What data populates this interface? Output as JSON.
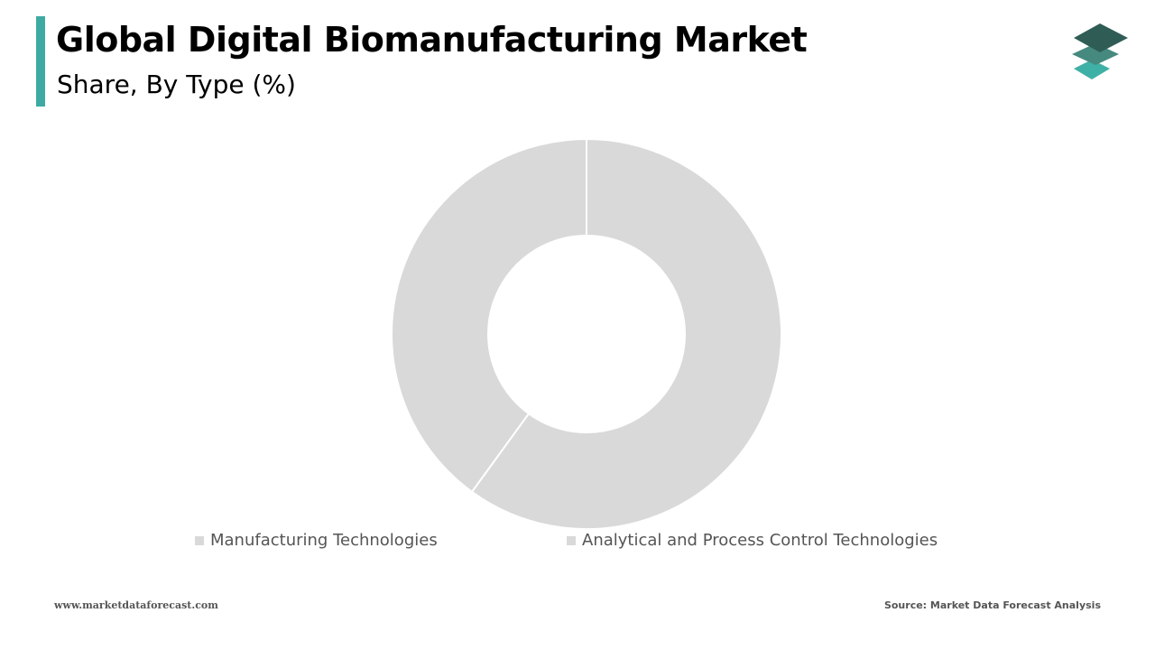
{
  "header": {
    "title": "Global Digital Biomanufacturing Market",
    "subtitle": "Share, By Type (%)"
  },
  "colors": {
    "accent": "#3eaaa4",
    "logo_top": "#2f5d56",
    "logo_mid": "#45897f",
    "logo_bottom": "#3fb0a6",
    "slice": "#d9d9d9",
    "slice_border": "#ffffff"
  },
  "logo": {
    "icon": "stacked-layers-icon"
  },
  "chart_data": {
    "type": "pie",
    "donut": true,
    "title": "",
    "categories": [
      "Manufacturing Technologies",
      "Analytical and Process Control Technologies"
    ],
    "values": [
      60,
      40
    ],
    "unit": "%",
    "data_labels": false,
    "legend": "bottom"
  },
  "legend": {
    "items": [
      {
        "label": "Manufacturing Technologies",
        "color": "#d9d9d9"
      },
      {
        "label": "Analytical and Process Control Technologies",
        "color": "#d9d9d9"
      }
    ]
  },
  "footer": {
    "website": "www.marketdataforecast.com",
    "source": "Source: Market Data Forecast Analysis"
  }
}
